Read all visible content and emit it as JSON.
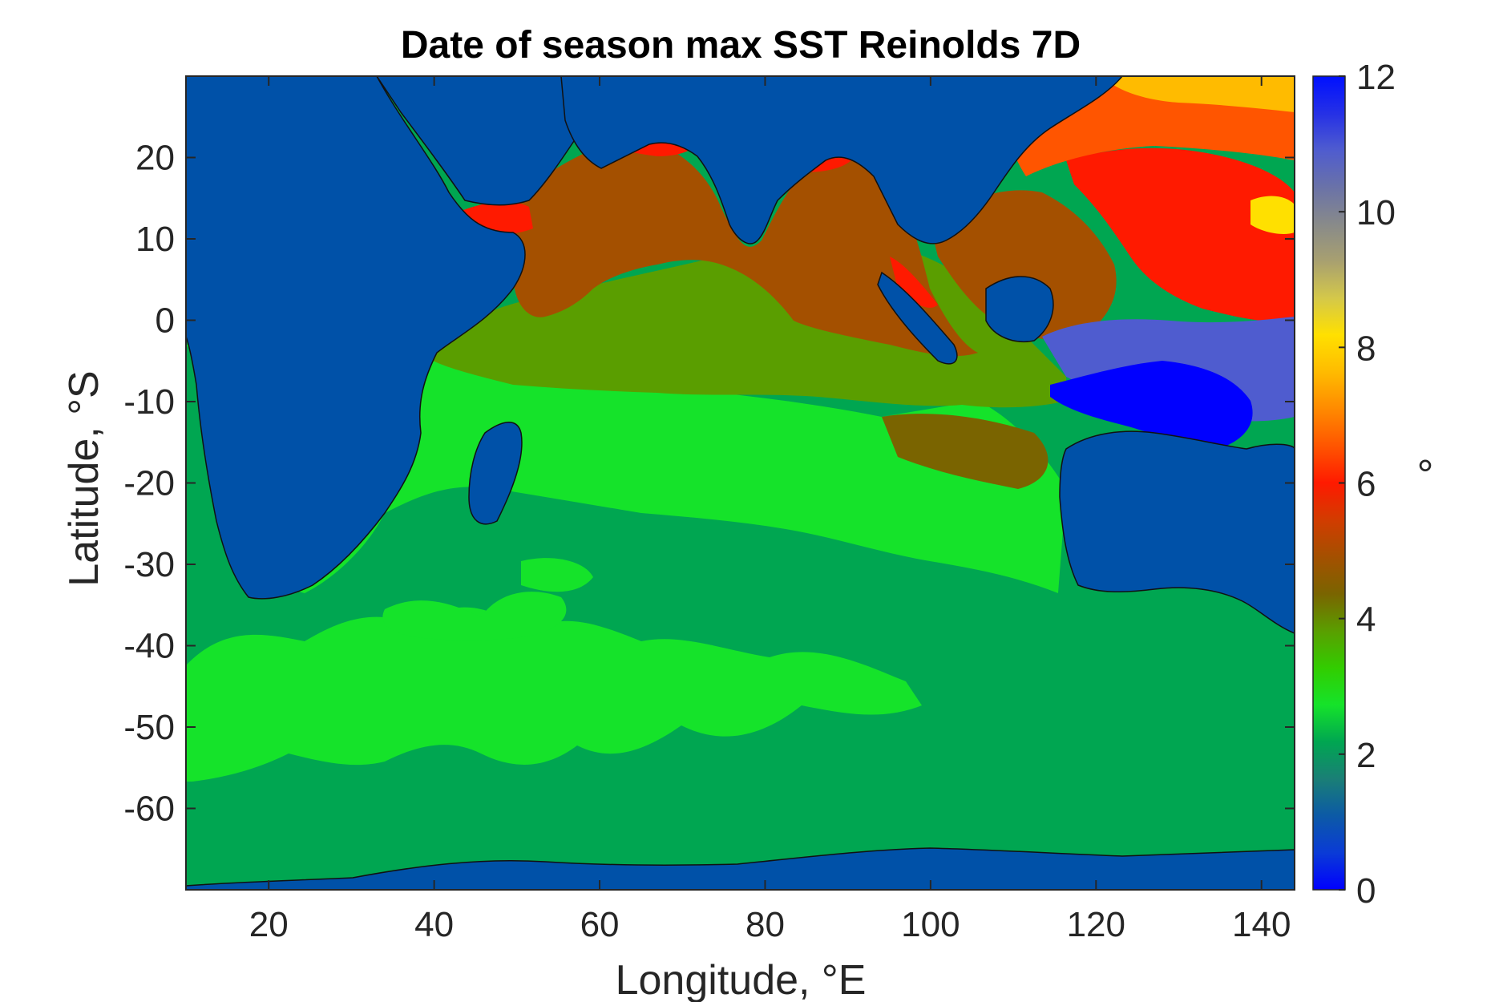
{
  "title": "Date of season max SST Reinolds 7D",
  "x_axis": {
    "label": "Longitude, °E",
    "ticks": [
      20,
      40,
      60,
      80,
      100,
      120,
      140
    ],
    "tick_labels": [
      "20",
      "40",
      "60",
      "80",
      "100",
      "120",
      "140"
    ],
    "range": [
      10,
      144
    ]
  },
  "y_axis": {
    "label": "Latitude, °S",
    "ticks": [
      20,
      10,
      0,
      -10,
      -20,
      -30,
      -40,
      -50,
      -60
    ],
    "tick_labels": [
      "20",
      "10",
      "0",
      "-10",
      "-20",
      "-30",
      "-40",
      "-50",
      "-60"
    ],
    "range": [
      -70,
      30
    ]
  },
  "colorbar": {
    "unit_label": "°",
    "ticks": [
      0,
      2,
      4,
      6,
      8,
      10,
      12
    ],
    "tick_labels": [
      "0",
      "2",
      "4",
      "6",
      "8",
      "10",
      "12"
    ],
    "range": [
      0,
      12
    ],
    "colors": [
      "#0000ff",
      "#0a3bd6",
      "#0c5aa6",
      "#1a7f76",
      "#00a651",
      "#15e32a",
      "#32cd00",
      "#5a9e00",
      "#7a6400",
      "#a45000",
      "#d23c00",
      "#ff1a00",
      "#ff5500",
      "#ff8a00",
      "#ffbb00",
      "#ffe000",
      "#d4c84a",
      "#a8a070",
      "#888a8a",
      "#6a72a8",
      "#4f5ccf",
      "#2530e6",
      "#0010ff"
    ]
  },
  "land_color": "#0051a8",
  "ocean_region_colors": {
    "southern_ocean": "#00a651",
    "bright_bands": "#15e32a",
    "equatorial_band": "#5a9e00",
    "north_indian": "#a45000",
    "bay_marginal": "#ff1a00",
    "indonesian_seas": "#0000ff",
    "pacific_orange": "#ff5500",
    "yellow_patch": "#ffbb00"
  }
}
